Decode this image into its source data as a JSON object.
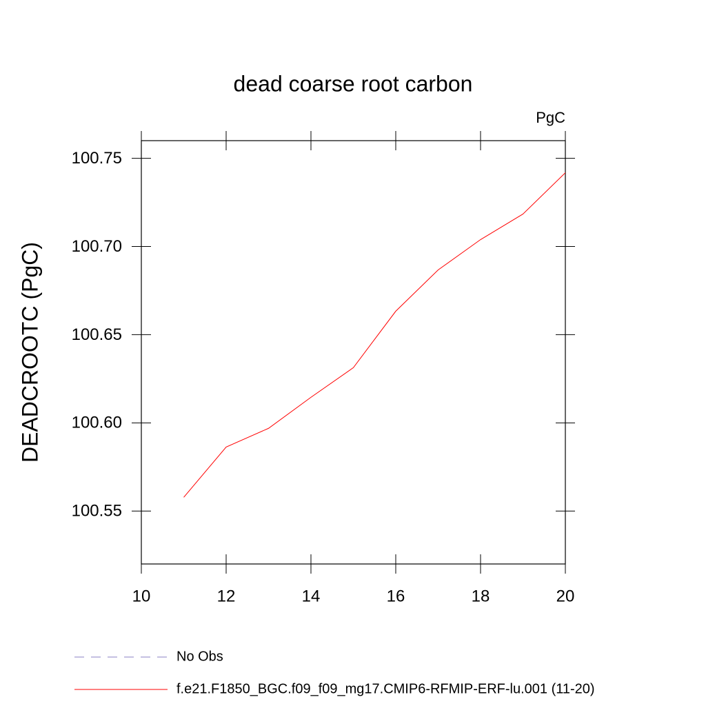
{
  "chart_data": {
    "type": "line",
    "title": "dead coarse root carbon",
    "units": "PgC",
    "y_label": "DEADCROOTC  (PgC)",
    "x": [
      11,
      12,
      13,
      14,
      15,
      16,
      17,
      18,
      19,
      20
    ],
    "series": [
      {
        "name": "No Obs",
        "color": "#8a7fc4",
        "dash": true,
        "values": [
          null,
          null,
          null,
          null,
          null,
          null,
          null,
          null,
          null,
          null
        ]
      },
      {
        "name": "f.e21.F1850_BGC.f09_f09_mg17.CMIP6-RFMIP-ERF-lu.001 (11-20)",
        "color": "#ff0000",
        "dash": false,
        "values": [
          100.5578,
          100.5863,
          100.5969,
          100.6145,
          100.6313,
          100.6633,
          100.6867,
          100.7039,
          100.7184,
          100.7418
        ]
      }
    ],
    "xlim": [
      10,
      20
    ],
    "xticks": [
      10,
      12,
      14,
      16,
      18,
      20
    ],
    "ylim": [
      100.52,
      100.76
    ],
    "yticks": [
      100.55,
      {
        "value": 100.6,
        "label": "100.60"
      },
      100.65,
      {
        "value": 100.7,
        "label": "100.70"
      },
      100.75
    ],
    "grid": false
  }
}
